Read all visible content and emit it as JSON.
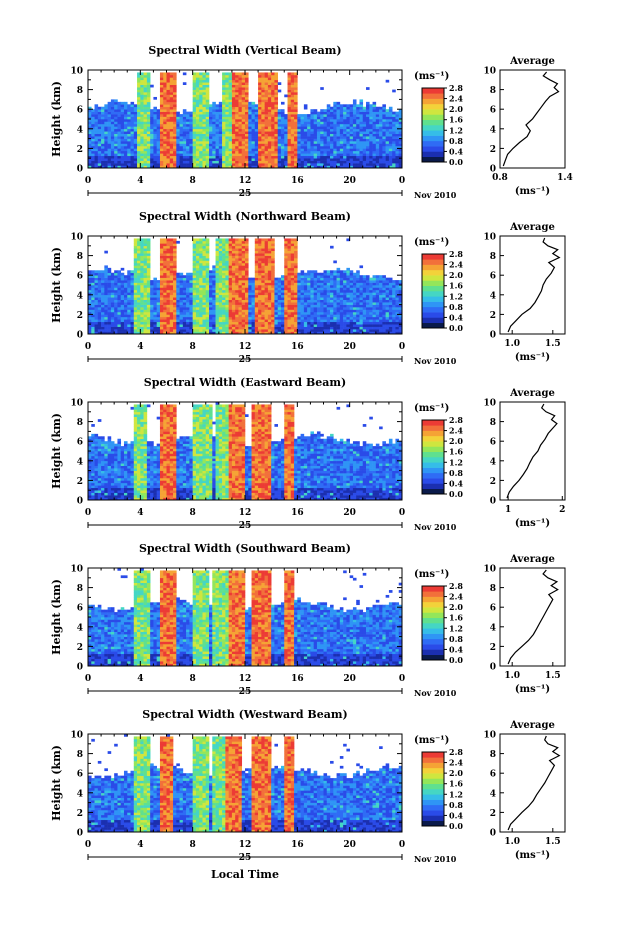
{
  "colors": {
    "colorbar": [
      "#0a1a4a",
      "#1b2fb0",
      "#2a4be8",
      "#2f6cf5",
      "#2f95f5",
      "#35bde8",
      "#45d6c4",
      "#5fe08f",
      "#93e65a",
      "#cfe63f",
      "#f3d23a",
      "#f5a335",
      "#f2703a",
      "#ec3b35"
    ]
  },
  "footer": {
    "xlabel": "Local Time"
  },
  "chart_data": [
    {
      "type": "heatmap",
      "title": "Spectral Width (Vertical Beam)",
      "ylabel": "Height (km)",
      "xticks": [
        "0",
        "4",
        "8",
        "12",
        "16",
        "20",
        "0"
      ],
      "yticks": [
        "0",
        "2",
        "4",
        "6",
        "8",
        "10"
      ],
      "xlim": [
        0,
        24
      ],
      "ylim": [
        0,
        10
      ],
      "date_day": "25",
      "date_month": "Nov 2010",
      "colorbar": {
        "label": "(ms⁻¹)",
        "ticks": [
          "0.0",
          "0.4",
          "0.8",
          "1.2",
          "1.6",
          "2.0",
          "2.4",
          "2.8"
        ],
        "range": [
          0,
          2.8
        ]
      },
      "red_bands": [
        [
          5.5,
          6.8
        ],
        [
          11.0,
          12.2
        ],
        [
          12.9,
          14.4
        ],
        [
          15.2,
          16.0
        ]
      ],
      "mid_bands": [
        [
          3.8,
          4.8
        ],
        [
          8.0,
          9.2
        ],
        [
          10.2,
          11.0
        ]
      ],
      "profile": {
        "title": "Average",
        "xlabel": "(ms⁻¹)",
        "xticks": [
          "0.8",
          "1.4"
        ],
        "xlim": [
          0.8,
          1.4
        ],
        "points": [
          [
            0.83,
            0.2
          ],
          [
            0.85,
            0.8
          ],
          [
            0.87,
            1.4
          ],
          [
            0.92,
            2.0
          ],
          [
            0.98,
            2.6
          ],
          [
            1.05,
            3.2
          ],
          [
            1.08,
            3.8
          ],
          [
            1.04,
            4.4
          ],
          [
            1.1,
            5.0
          ],
          [
            1.14,
            5.6
          ],
          [
            1.18,
            6.2
          ],
          [
            1.22,
            6.8
          ],
          [
            1.26,
            7.3
          ],
          [
            1.34,
            7.8
          ],
          [
            1.3,
            8.2
          ],
          [
            1.33,
            8.6
          ],
          [
            1.26,
            9.0
          ],
          [
            1.2,
            9.4
          ],
          [
            1.23,
            9.8
          ]
        ]
      }
    },
    {
      "type": "heatmap",
      "title": "Spectral Width (Northward Beam)",
      "ylabel": "Height (km)",
      "xticks": [
        "0",
        "4",
        "8",
        "12",
        "16",
        "20",
        "0"
      ],
      "yticks": [
        "0",
        "2",
        "4",
        "6",
        "8",
        "10"
      ],
      "xlim": [
        0,
        24
      ],
      "ylim": [
        0,
        10
      ],
      "date_day": "25",
      "date_month": "Nov 2010",
      "colorbar": {
        "label": "(ms⁻¹)",
        "ticks": [
          "0.0",
          "0.4",
          "0.8",
          "1.2",
          "1.6",
          "2.0",
          "2.4",
          "2.8"
        ],
        "range": [
          0,
          2.8
        ]
      },
      "red_bands": [
        [
          5.5,
          6.8
        ],
        [
          10.8,
          12.2
        ],
        [
          12.8,
          14.2
        ],
        [
          15.0,
          16.0
        ]
      ],
      "mid_bands": [
        [
          3.6,
          4.8
        ],
        [
          8.0,
          9.2
        ],
        [
          9.8,
          10.8
        ]
      ],
      "profile": {
        "title": "Average",
        "xlabel": "(ms⁻¹)",
        "xticks": [
          "1.0",
          "1.5"
        ],
        "xlim": [
          0.85,
          1.65
        ],
        "points": [
          [
            0.95,
            0.2
          ],
          [
            0.98,
            0.8
          ],
          [
            1.05,
            1.4
          ],
          [
            1.12,
            2.0
          ],
          [
            1.22,
            2.6
          ],
          [
            1.28,
            3.2
          ],
          [
            1.32,
            3.8
          ],
          [
            1.36,
            4.4
          ],
          [
            1.38,
            5.0
          ],
          [
            1.42,
            5.6
          ],
          [
            1.48,
            6.2
          ],
          [
            1.52,
            6.8
          ],
          [
            1.45,
            7.3
          ],
          [
            1.58,
            7.8
          ],
          [
            1.5,
            8.2
          ],
          [
            1.56,
            8.6
          ],
          [
            1.44,
            9.0
          ],
          [
            1.38,
            9.4
          ],
          [
            1.4,
            9.8
          ]
        ]
      }
    },
    {
      "type": "heatmap",
      "title": "Spectral Width (Eastward Beam)",
      "ylabel": "Height (km)",
      "xticks": [
        "0",
        "4",
        "8",
        "12",
        "16",
        "20",
        "0"
      ],
      "yticks": [
        "0",
        "2",
        "4",
        "6",
        "8",
        "10"
      ],
      "xlim": [
        0,
        24
      ],
      "ylim": [
        0,
        10
      ],
      "date_day": "25",
      "date_month": "Nov 2010",
      "colorbar": {
        "label": "(ms⁻¹)",
        "ticks": [
          "0.0",
          "0.4",
          "0.8",
          "1.2",
          "1.6",
          "2.0",
          "2.4",
          "2.8"
        ],
        "range": [
          0,
          2.8
        ]
      },
      "red_bands": [
        [
          5.5,
          6.8
        ],
        [
          10.8,
          12.0
        ],
        [
          12.6,
          14.0
        ],
        [
          15.0,
          15.8
        ]
      ],
      "mid_bands": [
        [
          3.6,
          4.6
        ],
        [
          8.0,
          9.4
        ],
        [
          9.8,
          10.8
        ]
      ],
      "profile": {
        "title": "Average",
        "xlabel": "(ms⁻¹)",
        "xticks": [
          "1",
          "2"
        ],
        "xlim": [
          0.85,
          2.05
        ],
        "points": [
          [
            0.98,
            0.2
          ],
          [
            1.02,
            0.8
          ],
          [
            1.1,
            1.4
          ],
          [
            1.2,
            2.0
          ],
          [
            1.28,
            2.6
          ],
          [
            1.35,
            3.2
          ],
          [
            1.4,
            3.8
          ],
          [
            1.46,
            4.4
          ],
          [
            1.55,
            5.0
          ],
          [
            1.6,
            5.6
          ],
          [
            1.68,
            6.2
          ],
          [
            1.74,
            6.8
          ],
          [
            1.82,
            7.3
          ],
          [
            1.9,
            7.8
          ],
          [
            1.8,
            8.2
          ],
          [
            1.86,
            8.6
          ],
          [
            1.7,
            9.0
          ],
          [
            1.62,
            9.4
          ],
          [
            1.66,
            9.8
          ]
        ]
      }
    },
    {
      "type": "heatmap",
      "title": "Spectral Width (Southward Beam)",
      "ylabel": "Height (km)",
      "xticks": [
        "0",
        "4",
        "8",
        "12",
        "16",
        "20",
        "0"
      ],
      "yticks": [
        "0",
        "2",
        "4",
        "6",
        "8",
        "10"
      ],
      "xlim": [
        0,
        24
      ],
      "ylim": [
        0,
        10
      ],
      "date_day": "25",
      "date_month": "Nov 2010",
      "colorbar": {
        "label": "(ms⁻¹)",
        "ticks": [
          "0.0",
          "0.4",
          "0.8",
          "1.2",
          "1.6",
          "2.0",
          "2.4",
          "2.8"
        ],
        "range": [
          0,
          2.8
        ]
      },
      "red_bands": [
        [
          5.5,
          6.8
        ],
        [
          10.8,
          12.0
        ],
        [
          12.6,
          14.0
        ],
        [
          15.0,
          15.8
        ]
      ],
      "mid_bands": [
        [
          3.6,
          4.8
        ],
        [
          8.0,
          9.2
        ],
        [
          9.6,
          10.8
        ]
      ],
      "profile": {
        "title": "Average",
        "xlabel": "(ms⁻¹)",
        "xticks": [
          "1.0",
          "1.5"
        ],
        "xlim": [
          0.85,
          1.65
        ],
        "points": [
          [
            0.95,
            0.2
          ],
          [
            0.98,
            0.8
          ],
          [
            1.04,
            1.4
          ],
          [
            1.12,
            2.0
          ],
          [
            1.2,
            2.6
          ],
          [
            1.26,
            3.2
          ],
          [
            1.3,
            3.8
          ],
          [
            1.34,
            4.4
          ],
          [
            1.38,
            5.0
          ],
          [
            1.42,
            5.6
          ],
          [
            1.46,
            6.2
          ],
          [
            1.5,
            6.8
          ],
          [
            1.45,
            7.3
          ],
          [
            1.56,
            7.8
          ],
          [
            1.48,
            8.2
          ],
          [
            1.55,
            8.6
          ],
          [
            1.44,
            9.0
          ],
          [
            1.38,
            9.4
          ],
          [
            1.42,
            9.8
          ]
        ]
      }
    },
    {
      "type": "heatmap",
      "title": "Spectral Width (Westward Beam)",
      "ylabel": "Height (km)",
      "xticks": [
        "0",
        "4",
        "8",
        "12",
        "16",
        "20",
        "0"
      ],
      "yticks": [
        "0",
        "2",
        "4",
        "6",
        "8",
        "10"
      ],
      "xlim": [
        0,
        24
      ],
      "ylim": [
        0,
        10
      ],
      "date_day": "25",
      "date_month": "Nov 2010",
      "colorbar": {
        "label": "(ms⁻¹)",
        "ticks": [
          "0.0",
          "0.4",
          "0.8",
          "1.2",
          "1.6",
          "2.0",
          "2.4",
          "2.8"
        ],
        "range": [
          0,
          2.8
        ]
      },
      "red_bands": [
        [
          5.5,
          6.6
        ],
        [
          10.6,
          11.8
        ],
        [
          12.6,
          14.0
        ],
        [
          15.0,
          15.8
        ]
      ],
      "mid_bands": [
        [
          3.6,
          4.8
        ],
        [
          8.0,
          9.2
        ],
        [
          9.6,
          10.6
        ]
      ],
      "profile": {
        "title": "Average",
        "xlabel": "(ms⁻¹)",
        "xticks": [
          "1.0",
          "1.5"
        ],
        "xlim": [
          0.85,
          1.65
        ],
        "points": [
          [
            0.95,
            0.2
          ],
          [
            0.98,
            0.8
          ],
          [
            1.05,
            1.4
          ],
          [
            1.12,
            2.0
          ],
          [
            1.2,
            2.6
          ],
          [
            1.26,
            3.2
          ],
          [
            1.3,
            3.8
          ],
          [
            1.35,
            4.4
          ],
          [
            1.4,
            5.0
          ],
          [
            1.44,
            5.6
          ],
          [
            1.48,
            6.2
          ],
          [
            1.52,
            6.8
          ],
          [
            1.46,
            7.3
          ],
          [
            1.58,
            7.8
          ],
          [
            1.5,
            8.2
          ],
          [
            1.56,
            8.6
          ],
          [
            1.44,
            9.0
          ],
          [
            1.4,
            9.4
          ],
          [
            1.42,
            9.8
          ]
        ]
      }
    }
  ]
}
